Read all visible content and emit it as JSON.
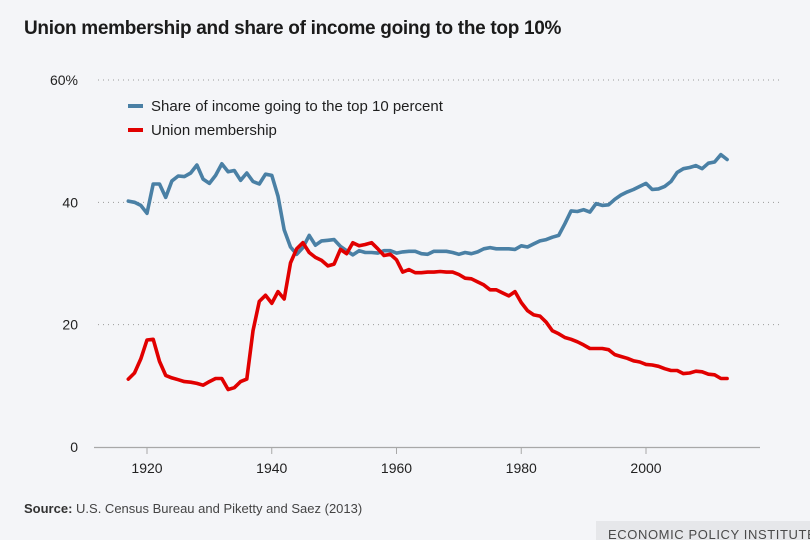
{
  "title": "Union membership and share of income going to the top 10%",
  "source_label": "Source:",
  "source_text": "U.S. Census Bureau and Piketty and Saez (2013)",
  "brand": "ECONOMIC POLICY INSTITUTE",
  "chart_data": {
    "type": "line",
    "title": "Union membership and share of income going to the top 10%",
    "xlabel": "",
    "ylabel": "",
    "xlim": [
      1911,
      2018
    ],
    "ylim": [
      0,
      60
    ],
    "x_ticks": [
      1920,
      1940,
      1960,
      1980,
      2000
    ],
    "x_tick_labels": [
      "1920",
      "1940",
      "1960",
      "1980",
      "2000"
    ],
    "y_ticks": [
      0,
      20,
      40,
      60
    ],
    "y_tick_labels": [
      "0",
      "20",
      "40",
      "60%"
    ],
    "grid": "horizontal-dotted",
    "legend_position": "top-left",
    "x": [
      1917,
      1918,
      1919,
      1920,
      1921,
      1922,
      1923,
      1924,
      1925,
      1926,
      1927,
      1928,
      1929,
      1930,
      1931,
      1932,
      1933,
      1934,
      1935,
      1936,
      1937,
      1938,
      1939,
      1940,
      1941,
      1942,
      1943,
      1944,
      1945,
      1946,
      1947,
      1948,
      1949,
      1950,
      1951,
      1952,
      1953,
      1954,
      1955,
      1956,
      1957,
      1958,
      1959,
      1960,
      1961,
      1962,
      1963,
      1964,
      1965,
      1966,
      1967,
      1968,
      1969,
      1970,
      1971,
      1972,
      1973,
      1974,
      1975,
      1976,
      1977,
      1978,
      1979,
      1980,
      1981,
      1982,
      1983,
      1984,
      1985,
      1986,
      1987,
      1988,
      1989,
      1990,
      1991,
      1992,
      1993,
      1994,
      1995,
      1996,
      1997,
      1998,
      1999,
      2000,
      2001,
      2002,
      2003,
      2004,
      2005,
      2006,
      2007,
      2008,
      2009,
      2010,
      2011,
      2012,
      2013
    ],
    "series": [
      {
        "name": "Share of income going to the top 10 percent",
        "color": "#4a80a5",
        "values": [
          40.2,
          40.0,
          39.5,
          38.2,
          43.0,
          43.0,
          40.8,
          43.5,
          44.3,
          44.2,
          44.8,
          46.1,
          43.8,
          43.1,
          44.4,
          46.3,
          45.0,
          45.2,
          43.6,
          44.8,
          43.4,
          43.0,
          44.6,
          44.4,
          41.0,
          35.5,
          32.7,
          31.5,
          32.6,
          34.6,
          33.0,
          33.7,
          33.8,
          33.9,
          32.8,
          32.1,
          31.4,
          32.1,
          31.8,
          31.8,
          31.7,
          32.1,
          32.1,
          31.7,
          31.9,
          32.0,
          32.0,
          31.6,
          31.5,
          32.0,
          32.0,
          32.0,
          31.8,
          31.5,
          31.8,
          31.6,
          31.9,
          32.4,
          32.6,
          32.4,
          32.4,
          32.4,
          32.3,
          32.9,
          32.7,
          33.2,
          33.7,
          33.9,
          34.3,
          34.6,
          36.5,
          38.6,
          38.5,
          38.8,
          38.4,
          39.8,
          39.5,
          39.6,
          40.5,
          41.2,
          41.7,
          42.1,
          42.6,
          43.1,
          42.1,
          42.2,
          42.6,
          43.4,
          44.9,
          45.5,
          45.7,
          46.0,
          45.5,
          46.4,
          46.6,
          47.8,
          47.0
        ]
      },
      {
        "name": "Union membership",
        "color": "#e10000",
        "values": [
          11.1,
          12.1,
          14.4,
          17.5,
          17.6,
          14.0,
          11.7,
          11.3,
          11.0,
          10.7,
          10.6,
          10.4,
          10.1,
          10.7,
          11.2,
          11.2,
          9.4,
          9.7,
          10.7,
          11.1,
          19.0,
          23.8,
          24.8,
          23.5,
          25.4,
          24.2,
          30.1,
          32.4,
          33.4,
          31.8,
          31.0,
          30.5,
          29.6,
          29.9,
          32.3,
          31.6,
          33.4,
          32.9,
          33.1,
          33.4,
          32.4,
          31.3,
          31.5,
          30.6,
          28.6,
          29.0,
          28.5,
          28.5,
          28.6,
          28.6,
          28.7,
          28.6,
          28.6,
          28.2,
          27.6,
          27.5,
          27.0,
          26.5,
          25.7,
          25.7,
          25.2,
          24.7,
          25.4,
          23.6,
          22.3,
          21.6,
          21.4,
          20.4,
          19.0,
          18.5,
          17.9,
          17.6,
          17.2,
          16.7,
          16.1,
          16.1,
          16.1,
          15.9,
          15.1,
          14.8,
          14.5,
          14.1,
          13.9,
          13.5,
          13.4,
          13.2,
          12.8,
          12.5,
          12.5,
          12.0,
          12.1,
          12.4,
          12.3,
          11.9,
          11.8,
          11.2,
          11.2
        ]
      }
    ]
  }
}
